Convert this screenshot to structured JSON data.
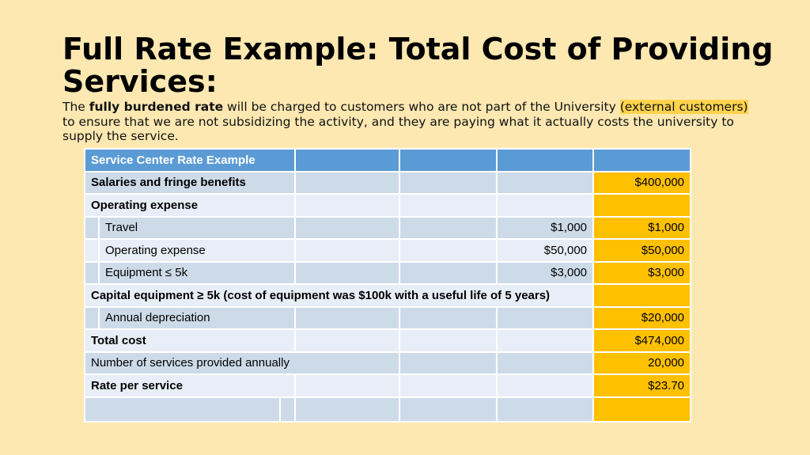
{
  "slide": {
    "title": "Full Rate Example: Total Cost of Providing Services:",
    "intro": {
      "prefix": "The ",
      "bold_term": "fully burdened rate",
      "middle": " will be charged to customers who are not part of the University ",
      "highlight": "(external customers)",
      "suffix": " to ensure that we are not subsidizing the activity, and they are paying what it actually costs the university to supply the service."
    }
  },
  "table": {
    "header": "Service Center Rate Example",
    "rows": [
      {
        "label": "Salaries and fringe benefits",
        "amount": "",
        "total": "$400,000"
      },
      {
        "label": "Operating expense",
        "amount": "",
        "total": ""
      },
      {
        "label": "Travel",
        "amount": "$1,000",
        "total": "$1,000"
      },
      {
        "label": "Operating expense",
        "amount": "$50,000",
        "total": "$50,000"
      },
      {
        "label": "Equipment ≤ 5k",
        "amount": "$3,000",
        "total": "$3,000"
      },
      {
        "label": "Capital equipment ≥ 5k (cost of equipment was $100k with a useful life of 5 years)",
        "amount": "",
        "total": ""
      },
      {
        "label": "Annual depreciation",
        "amount": "",
        "total": "$20,000"
      },
      {
        "label": "Total cost",
        "amount": "",
        "total": "$474,000"
      },
      {
        "label": "Number of services provided annually",
        "amount": "",
        "total": "20,000"
      },
      {
        "label": "Rate per service",
        "amount": "",
        "total": "$23.70"
      }
    ]
  },
  "colors": {
    "background": "#fde8b2",
    "header_blue": "#5b9bd5",
    "row_dark": "#cddbe9",
    "row_light": "#e8eef7",
    "gold": "#ffc000",
    "highlight": "#ffd34d"
  }
}
